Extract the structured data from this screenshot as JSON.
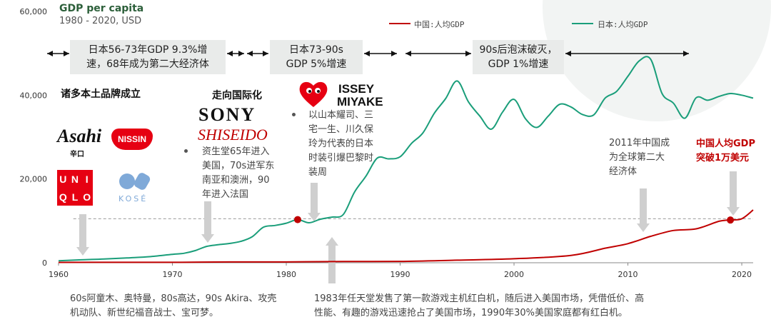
{
  "header": {
    "title": "GDP per capita",
    "subtitle": "1980  -  2020, USD"
  },
  "legend": {
    "china_label": "中国:人均GDP",
    "japan_label": "日本:人均GDP"
  },
  "colors": {
    "china": "#c00000",
    "japan": "#1a9e7a",
    "arrow": "#cfcfcf",
    "reference_line": "#999999"
  },
  "periods": [
    {
      "line1": "日本56-73年GDP 9.3%增",
      "line2": "速，68年成为第二大经济体"
    },
    {
      "line1": "日本73-90s",
      "line2": "GDP 5%增速"
    },
    {
      "line1": "90s后泡沫破灭，",
      "line2": "GDP 1%增速"
    }
  ],
  "headings": {
    "brands": "诸多本土品牌成立",
    "international": "走向国际化"
  },
  "notes": {
    "shiseido": [
      "资生堂65年进入",
      "美国，70s进军东",
      "南亚和澳洲，90",
      "年进入法国"
    ],
    "fashion": [
      "以山本耀司、三",
      "宅一生、川久保",
      "玲为代表的日本",
      "时装引爆巴黎时",
      "装周"
    ],
    "china_second": [
      "2011年中国成",
      "为全球第二大",
      "经济体"
    ],
    "china_10k": [
      "中国人均GDP",
      "突破1万美元"
    ],
    "anime": [
      "60s阿童木、奥特曼，80s高达，90s Akira、攻壳",
      "机动队、新世纪福音战士、宝可梦。"
    ],
    "nintendo": [
      "1983年任天堂发售了第一款游戏主机红白机，随后进入美国市场，凭借低价、高",
      "性能、有趣的游戏迅速抢占了美国市场，1990年30%美国家庭都有红白机。"
    ]
  },
  "logos": {
    "asahi": "Asahi",
    "asahi_sub": "辛口",
    "nissin": "NISSIN",
    "uniqlo": [
      "U",
      "N",
      "I",
      "Q",
      "L",
      "O"
    ],
    "kose": "KOSÉ",
    "sony": "SONY",
    "shiseido": "SHISEIDO",
    "cdg_heart_icon": "heart-logo-icon",
    "issey": "ISSEY",
    "miyake": "MIYAKE"
  },
  "chart_data": {
    "type": "line",
    "xlim": [
      1960,
      2021
    ],
    "ylim": [
      0,
      60000
    ],
    "x_ticks": [
      1960,
      1970,
      1980,
      1990,
      2000,
      2010,
      2020
    ],
    "y_ticks": [
      0,
      20000,
      40000,
      60000
    ],
    "y_tick_labels": [
      "0",
      "20,000",
      "40,000",
      "60,000"
    ],
    "reference_line_y": 10500,
    "markers": [
      {
        "series": "japan",
        "x": 1981,
        "y": 10300
      },
      {
        "series": "china",
        "x": 2019,
        "y": 10200
      }
    ],
    "series": [
      {
        "name": "中国:人均GDP",
        "key": "china",
        "points": [
          [
            1960,
            90
          ],
          [
            1965,
            100
          ],
          [
            1970,
            110
          ],
          [
            1975,
            180
          ],
          [
            1980,
            195
          ],
          [
            1985,
            295
          ],
          [
            1990,
            318
          ],
          [
            1995,
            610
          ],
          [
            2000,
            960
          ],
          [
            2005,
            1750
          ],
          [
            2008,
            3470
          ],
          [
            2010,
            4550
          ],
          [
            2012,
            6300
          ],
          [
            2014,
            7700
          ],
          [
            2016,
            8100
          ],
          [
            2018,
            9900
          ],
          [
            2019,
            10200
          ],
          [
            2020,
            10500
          ],
          [
            2021,
            12600
          ]
        ]
      },
      {
        "name": "日本:人均GDP",
        "key": "japan",
        "points": [
          [
            1960,
            475
          ],
          [
            1962,
            700
          ],
          [
            1964,
            900
          ],
          [
            1966,
            1150
          ],
          [
            1968,
            1450
          ],
          [
            1970,
            2000
          ],
          [
            1971,
            2250
          ],
          [
            1972,
            2900
          ],
          [
            1973,
            3900
          ],
          [
            1974,
            4300
          ],
          [
            1975,
            4600
          ],
          [
            1976,
            5100
          ],
          [
            1977,
            6200
          ],
          [
            1978,
            8500
          ],
          [
            1979,
            8900
          ],
          [
            1980,
            9450
          ],
          [
            1981,
            10300
          ],
          [
            1982,
            9550
          ],
          [
            1983,
            10400
          ],
          [
            1984,
            10900
          ],
          [
            1985,
            11500
          ],
          [
            1986,
            16900
          ],
          [
            1987,
            20700
          ],
          [
            1988,
            25000
          ],
          [
            1989,
            24800
          ],
          [
            1990,
            25300
          ],
          [
            1991,
            28500
          ],
          [
            1992,
            31000
          ],
          [
            1993,
            35700
          ],
          [
            1994,
            39200
          ],
          [
            1995,
            43400
          ],
          [
            1996,
            38400
          ],
          [
            1997,
            35000
          ],
          [
            1998,
            31900
          ],
          [
            1999,
            36000
          ],
          [
            2000,
            39000
          ],
          [
            2001,
            34400
          ],
          [
            2002,
            32300
          ],
          [
            2003,
            35000
          ],
          [
            2004,
            37800
          ],
          [
            2005,
            37200
          ],
          [
            2006,
            35400
          ],
          [
            2007,
            35300
          ],
          [
            2008,
            39300
          ],
          [
            2009,
            40900
          ],
          [
            2010,
            44500
          ],
          [
            2011,
            48200
          ],
          [
            2012,
            48600
          ],
          [
            2013,
            40400
          ],
          [
            2014,
            38100
          ],
          [
            2015,
            34500
          ],
          [
            2016,
            39400
          ],
          [
            2017,
            38800
          ],
          [
            2018,
            39700
          ],
          [
            2019,
            40400
          ],
          [
            2020,
            40000
          ],
          [
            2021,
            39300
          ]
        ]
      }
    ]
  }
}
